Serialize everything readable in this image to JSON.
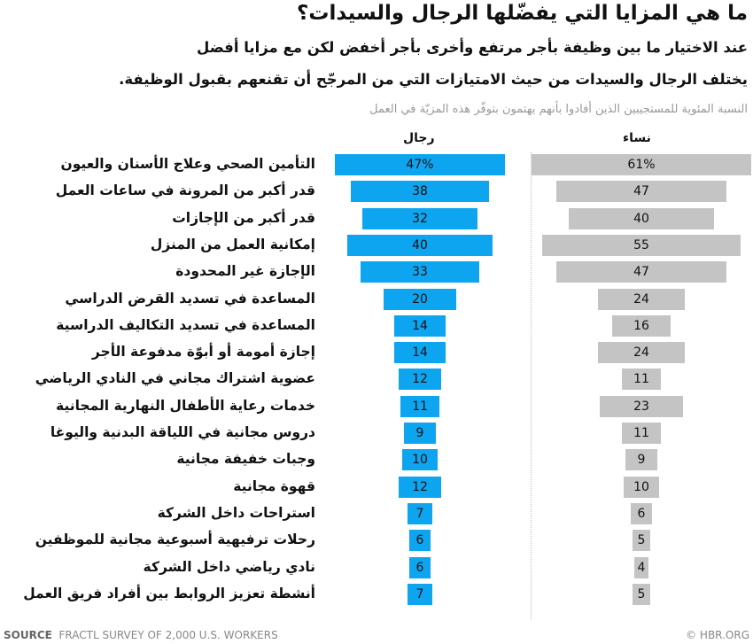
{
  "chart_data": {
    "type": "bar",
    "title": "ما هي المزايا التي يفضّلها الرجال والسيدات؟",
    "subtitle_1": "عند الاختيار ما بين وظيفة بأجر مرتفع وأخرى بأجر أخفض لكن مع مزايا أفضل",
    "subtitle_2": "يختلف الرجال والسيدات من حيث الامتيازات التي من المرجّح أن تقنعهم بقبول الوظيفة.",
    "ylabel": "النسبة المئوية للمستجيبين الذين أفادوا بأنهم يهتمون بتوفّر هذه المزيّة في العمل",
    "categories": [
      "التأمين الصحي وعلاج الأسنان والعيون",
      "قدر أكبر من المرونة في ساعات العمل",
      "قدر أكبر من الإجازات",
      "إمكانية العمل من المنزل",
      "الإجازة غير المحدودة",
      "المساعدة في تسديد القرض الدراسي",
      "المساعدة في تسديد التكاليف الدراسية",
      "إجازة أمومة أو أبوّة مدفوعة الأجر",
      "عضوية اشتراك مجاني في النادي الرياضي",
      "خدمات رعاية الأطفال النهارية المجانية",
      "دروس مجانية في اللياقة البدنية واليوغا",
      "وجبات خفيفة مجانية",
      "قهوة مجانية",
      "استراحات داخل الشركة",
      "رحلات ترفيهية أسبوعية مجانية للموظفين",
      "نادي رياضي داخل الشركة",
      "أنشطة تعزيز الروابط بين أفراد فريق العمل"
    ],
    "series": [
      {
        "name": "رجال",
        "color": "#0ea5f0",
        "values": [
          47,
          38,
          32,
          40,
          33,
          20,
          14,
          14,
          12,
          11,
          9,
          10,
          12,
          7,
          6,
          6,
          7
        ]
      },
      {
        "name": "نساء",
        "color": "#c4c4c4",
        "values": [
          61,
          47,
          40,
          55,
          47,
          24,
          16,
          24,
          11,
          23,
          11,
          9,
          10,
          6,
          5,
          4,
          5
        ]
      }
    ],
    "first_label_suffix": "%",
    "units": "%"
  },
  "footer": {
    "source_label": "SOURCE",
    "source_text": "FRACTL SURVEY OF 2,000 U.S. WORKERS",
    "copyright": "© HBR.ORG"
  }
}
